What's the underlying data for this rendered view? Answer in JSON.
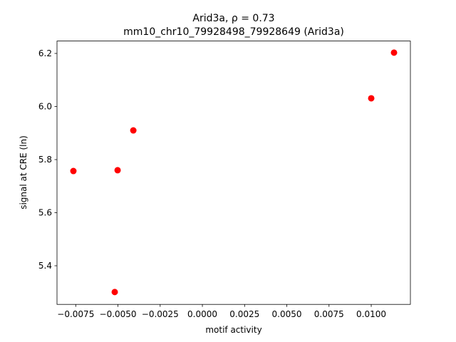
{
  "chart_data": {
    "type": "scatter",
    "title": "Arid3a, ρ = 0.73",
    "subtitle": "mm10_chr10_79928498_79928649 (Arid3a)",
    "x_label": "motif activity",
    "y_label": "signal at CRE (ln)",
    "color": "#ff0000",
    "x": [
      -0.00764,
      -0.00502,
      -0.00409,
      -0.00519,
      0.01,
      0.01135
    ],
    "values": [
      5.757,
      5.76,
      5.91,
      5.301,
      6.031,
      6.203
    ],
    "xlim": [
      -0.00861,
      0.01232
    ],
    "ylim": [
      5.2545,
      6.2467
    ],
    "xticks": [
      {
        "value": -0.0075,
        "label": "−0.0075"
      },
      {
        "value": -0.005,
        "label": "−0.0050"
      },
      {
        "value": -0.0025,
        "label": "−0.0025"
      },
      {
        "value": 0,
        "label": "0.0000"
      },
      {
        "value": 0.0025,
        "label": "0.0025"
      },
      {
        "value": 0.005,
        "label": "0.0050"
      },
      {
        "value": 0.0075,
        "label": "0.0075"
      },
      {
        "value": 0.01,
        "label": "0.0100"
      }
    ],
    "yticks": [
      5.4,
      5.6,
      5.8,
      {
        "value": 6.0,
        "label": "6.0"
      },
      6.2
    ],
    "grid": false
  }
}
